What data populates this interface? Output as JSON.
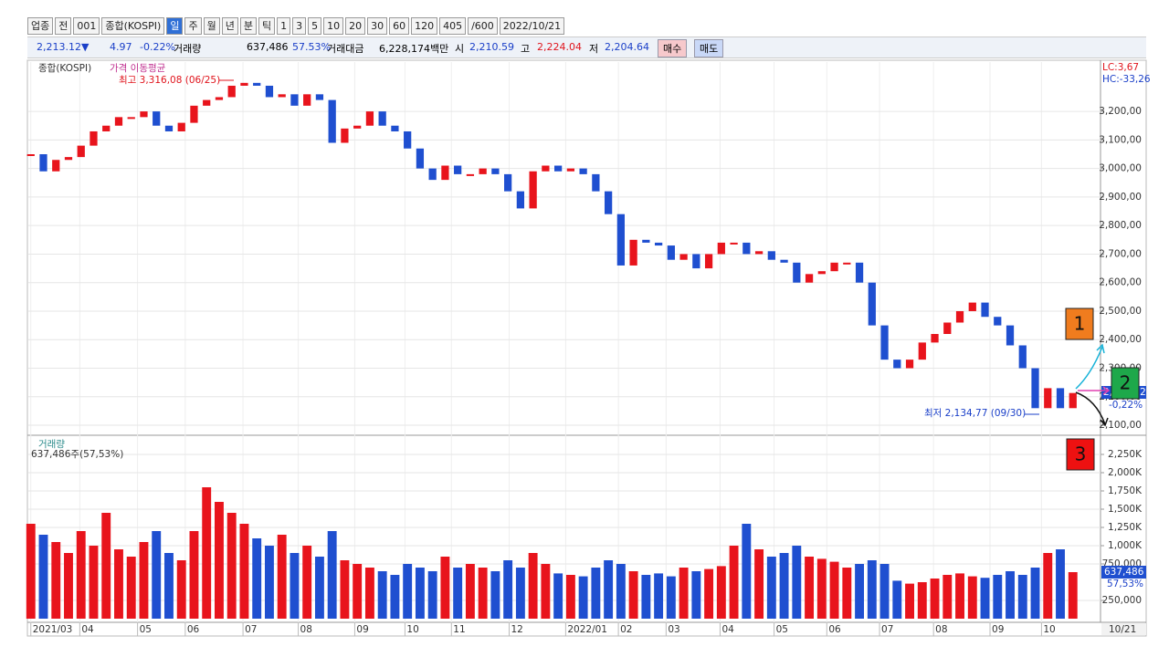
{
  "toolbar": {
    "items": [
      "업종",
      "전",
      "001",
      "종합(KOSPI)",
      "일",
      "주",
      "월",
      "년",
      "분",
      "틱",
      "1",
      "3",
      "5",
      "10",
      "20",
      "30",
      "60",
      "120",
      "405",
      "/600",
      "2022/10/21"
    ]
  },
  "info": {
    "price": "2,213.12▼",
    "change": "4.97",
    "change_pct": "-0.22%",
    "volume_label": "거래량",
    "volume": "637,486",
    "volume_pct": "57.53%",
    "amount_label": "거래대금",
    "amount": "6,228,174백만",
    "open_label": "시",
    "open": "2,210.59",
    "high_label": "고",
    "high": "2,224.04",
    "low_label": "저",
    "low": "2,204.64",
    "buy": "매수",
    "sell": "매도"
  },
  "chart_data": [
    {
      "type": "candlestick",
      "legend": [
        "종합(KOSPI)",
        "가격 이동평균"
      ],
      "values": [
        3050,
        2990,
        3030,
        3040,
        3080,
        3130,
        3150,
        3180,
        3180,
        3200,
        3150,
        3130,
        3160,
        3220,
        3240,
        3250,
        3290,
        3300,
        3290,
        3250,
        3260,
        3220,
        3260,
        3240,
        3090,
        3140,
        3150,
        3200,
        3150,
        3130,
        3070,
        3000,
        2960,
        3010,
        2980,
        2980,
        3000,
        2980,
        2920,
        2860,
        2990,
        3010,
        2990,
        3000,
        2980,
        2920,
        2840,
        2660,
        2750,
        2740,
        2730,
        2680,
        2700,
        2650,
        2700,
        2740,
        2740,
        2700,
        2710,
        2680,
        2670,
        2600,
        2630,
        2640,
        2670,
        2670,
        2600,
        2450,
        2330,
        2300,
        2330,
        2390,
        2420,
        2460,
        2500,
        2530,
        2480,
        2450,
        2380,
        2300,
        2160,
        2230,
        2160,
        2213.12
      ],
      "colors": {
        "up": "#e8141c",
        "down": "#1f4fd0"
      },
      "ylim": [
        2065,
        3373
      ],
      "yticks": [
        {
          "value": 2100,
          "label": "2,100,00"
        },
        {
          "value": 2200,
          "label": "2,200,00"
        },
        {
          "value": 2300,
          "label": "2,300,00"
        },
        {
          "value": 2400,
          "label": "2,400,00"
        },
        {
          "value": 2500,
          "label": "2,500,00"
        },
        {
          "value": 2600,
          "label": "2,600,00"
        },
        {
          "value": 2700,
          "label": "2,700,00"
        },
        {
          "value": 2800,
          "label": "2,800,00"
        },
        {
          "value": 2900,
          "label": "2,900,00"
        },
        {
          "value": 3000,
          "label": "3,000,00"
        },
        {
          "value": 3100,
          "label": "3,100,00"
        },
        {
          "value": 3200,
          "label": "3,200,00"
        }
      ],
      "xlim": [
        -0.2,
        85.2
      ],
      "xticks": [
        {
          "value": 0,
          "label": "2021/03"
        },
        {
          "value": 3.9,
          "label": "04"
        },
        {
          "value": 8.5,
          "label": "05"
        },
        {
          "value": 12.3,
          "label": "06"
        },
        {
          "value": 16.9,
          "label": "07"
        },
        {
          "value": 21.3,
          "label": "08"
        },
        {
          "value": 25.8,
          "label": "09"
        },
        {
          "value": 29.8,
          "label": "10"
        },
        {
          "value": 33.5,
          "label": "11"
        },
        {
          "value": 38.1,
          "label": "12"
        },
        {
          "value": 42.6,
          "label": "2022/01"
        },
        {
          "value": 46.8,
          "label": "02"
        },
        {
          "value": 50.6,
          "label": "03"
        },
        {
          "value": 54.9,
          "label": "04"
        },
        {
          "value": 59.2,
          "label": "05"
        },
        {
          "value": 63.4,
          "label": "06"
        },
        {
          "value": 67.6,
          "label": "07"
        },
        {
          "value": 71.9,
          "label": "08"
        },
        {
          "value": 76.4,
          "label": "09"
        },
        {
          "value": 80.5,
          "label": "10"
        }
      ],
      "grid": true
    },
    {
      "type": "bar",
      "title": "거래량",
      "subtitle": "637,486주(57,53%)",
      "values": [
        1300000,
        1150000,
        1050000,
        900000,
        1200000,
        1000000,
        1450000,
        950000,
        850000,
        1050000,
        1200000,
        900000,
        800000,
        1200000,
        1800000,
        1600000,
        1450000,
        1300000,
        1100000,
        1000000,
        1150000,
        900000,
        1000000,
        850000,
        1200000,
        800000,
        750000,
        700000,
        650000,
        600000,
        750000,
        700000,
        650000,
        850000,
        700000,
        750000,
        700000,
        650000,
        800000,
        700000,
        900000,
        750000,
        620000,
        600000,
        580000,
        700000,
        800000,
        750000,
        650000,
        600000,
        620000,
        580000,
        700000,
        650000,
        680000,
        720000,
        1000000,
        1300000,
        950000,
        850000,
        900000,
        1000000,
        850000,
        820000,
        780000,
        700000,
        750000,
        800000,
        750000,
        520000,
        480000,
        500000,
        550000,
        600000,
        620000,
        580000,
        560000,
        600000,
        650000,
        600000,
        700000,
        900000,
        950000,
        637486
      ],
      "ylim": [
        0,
        2475000
      ],
      "yticks": [
        {
          "value": 250000,
          "label": "250,000"
        },
        {
          "value": 750000,
          "label": "750,000"
        },
        {
          "value": 1000000,
          "label": "1,000K"
        },
        {
          "value": 1250000,
          "label": "1,250K"
        },
        {
          "value": 1500000,
          "label": "1,500K"
        },
        {
          "value": 1750000,
          "label": "1,750K"
        },
        {
          "value": 2000000,
          "label": "2,000K"
        },
        {
          "value": 2250000,
          "label": "2,250K"
        }
      ],
      "grid": true
    }
  ],
  "annotations": {
    "high": "최고 3,316,08 (06/25)",
    "low": "최저 2,134,77 (09/30)",
    "lc": "LC:3,67",
    "hc": "HC:-33,26",
    "last_price": "2,213,12",
    "last_change": "-0,22%",
    "last_volume": "637,486",
    "last_volume_pct": "57,53%",
    "last_date": "10/21",
    "box1": "1",
    "box2": "2",
    "box3": "3"
  }
}
